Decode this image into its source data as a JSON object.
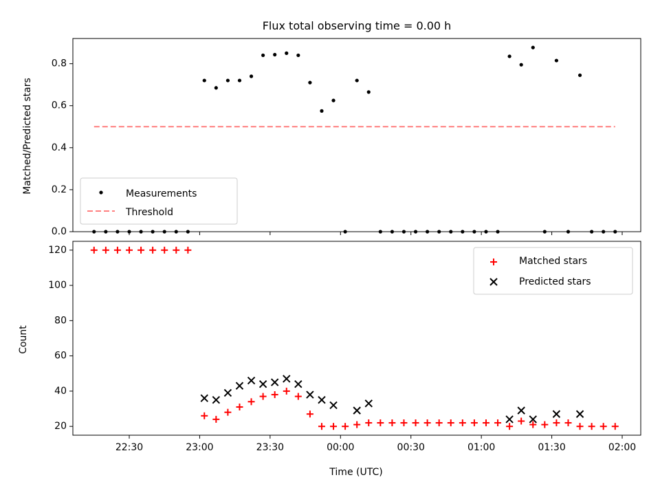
{
  "chart_data": [
    {
      "type": "scatter",
      "title": "Flux total observing time = 0.00 h",
      "xlabel": "",
      "ylabel": "Matched/Predicted stars",
      "ylim": [
        0,
        0.92
      ],
      "yticks": [
        "0.0",
        "0.2",
        "0.4",
        "0.6",
        "0.8"
      ],
      "legend": {
        "placement": "lower-left",
        "entries": [
          "Measurements",
          "Threshold"
        ]
      },
      "series": [
        {
          "name": "Measurements",
          "marker": "dot",
          "color": "#000000",
          "points": [
            [
              "22:15",
              0
            ],
            [
              "22:20",
              0
            ],
            [
              "22:25",
              0
            ],
            [
              "22:30",
              0
            ],
            [
              "22:35",
              0
            ],
            [
              "22:40",
              0
            ],
            [
              "22:45",
              0
            ],
            [
              "22:50",
              0
            ],
            [
              "22:55",
              0
            ],
            [
              "23:02",
              0.72
            ],
            [
              "23:07",
              0.685
            ],
            [
              "23:12",
              0.72
            ],
            [
              "23:17",
              0.72
            ],
            [
              "23:22",
              0.74
            ],
            [
              "23:27",
              0.84
            ],
            [
              "23:32",
              0.843
            ],
            [
              "23:37",
              0.85
            ],
            [
              "23:42",
              0.84
            ],
            [
              "23:47",
              0.71
            ],
            [
              "23:52",
              0.575
            ],
            [
              "23:57",
              0.625
            ],
            [
              "00:02",
              0
            ],
            [
              "00:07",
              0.72
            ],
            [
              "00:12",
              0.665
            ],
            [
              "00:17",
              0
            ],
            [
              "00:22",
              0
            ],
            [
              "00:27",
              0
            ],
            [
              "00:32",
              0
            ],
            [
              "00:37",
              0
            ],
            [
              "00:42",
              0
            ],
            [
              "00:47",
              0
            ],
            [
              "00:52",
              0
            ],
            [
              "00:57",
              0
            ],
            [
              "01:02",
              0
            ],
            [
              "01:07",
              0
            ],
            [
              "01:12",
              0.835
            ],
            [
              "01:17",
              0.795
            ],
            [
              "01:22",
              0.877
            ],
            [
              "01:27",
              0
            ],
            [
              "01:32",
              0.815
            ],
            [
              "01:37",
              0
            ],
            [
              "01:42",
              0.745
            ],
            [
              "01:47",
              0
            ],
            [
              "01:52",
              0
            ],
            [
              "01:57",
              0
            ]
          ]
        },
        {
          "name": "Threshold",
          "style": "dashed",
          "color": "#ff7f7f",
          "points": [
            [
              "22:15",
              0.5
            ],
            [
              "01:57",
              0.5
            ]
          ]
        }
      ]
    },
    {
      "type": "scatter",
      "title": "",
      "xlabel": "Time (UTC)",
      "ylabel": "Count",
      "ylim": [
        15,
        125
      ],
      "yticks": [
        "20",
        "40",
        "60",
        "80",
        "100",
        "120"
      ],
      "xticks": [
        "22:30",
        "23:00",
        "23:30",
        "00:00",
        "00:30",
        "01:00",
        "01:30",
        "02:00"
      ],
      "legend": {
        "placement": "top-right",
        "entries": [
          "Matched stars",
          "Predicted stars"
        ]
      },
      "series": [
        {
          "name": "Matched stars",
          "marker": "plus",
          "color": "#ff0000",
          "points": [
            [
              "22:15",
              120
            ],
            [
              "22:20",
              120
            ],
            [
              "22:25",
              120
            ],
            [
              "22:30",
              120
            ],
            [
              "22:35",
              120
            ],
            [
              "22:40",
              120
            ],
            [
              "22:45",
              120
            ],
            [
              "22:50",
              120
            ],
            [
              "22:55",
              120
            ],
            [
              "23:02",
              26
            ],
            [
              "23:07",
              24
            ],
            [
              "23:12",
              28
            ],
            [
              "23:17",
              31
            ],
            [
              "23:22",
              34
            ],
            [
              "23:27",
              37
            ],
            [
              "23:32",
              38
            ],
            [
              "23:37",
              40
            ],
            [
              "23:42",
              37
            ],
            [
              "23:47",
              27
            ],
            [
              "23:52",
              20
            ],
            [
              "23:57",
              20
            ],
            [
              "00:02",
              20
            ],
            [
              "00:07",
              21
            ],
            [
              "00:12",
              22
            ],
            [
              "00:17",
              22
            ],
            [
              "00:22",
              22
            ],
            [
              "00:27",
              22
            ],
            [
              "00:32",
              22
            ],
            [
              "00:37",
              22
            ],
            [
              "00:42",
              22
            ],
            [
              "00:47",
              22
            ],
            [
              "00:52",
              22
            ],
            [
              "00:57",
              22
            ],
            [
              "01:02",
              22
            ],
            [
              "01:07",
              22
            ],
            [
              "01:12",
              20
            ],
            [
              "01:17",
              23
            ],
            [
              "01:22",
              21
            ],
            [
              "01:27",
              21
            ],
            [
              "01:32",
              22
            ],
            [
              "01:37",
              22
            ],
            [
              "01:42",
              20
            ],
            [
              "01:47",
              20
            ],
            [
              "01:52",
              20
            ],
            [
              "01:57",
              20
            ]
          ]
        },
        {
          "name": "Predicted stars",
          "marker": "x",
          "color": "#000000",
          "points": [
            [
              "23:02",
              36
            ],
            [
              "23:07",
              35
            ],
            [
              "23:12",
              39
            ],
            [
              "23:17",
              43
            ],
            [
              "23:22",
              46
            ],
            [
              "23:27",
              44
            ],
            [
              "23:32",
              45
            ],
            [
              "23:37",
              47
            ],
            [
              "23:42",
              44
            ],
            [
              "23:47",
              38
            ],
            [
              "23:52",
              35
            ],
            [
              "23:57",
              32
            ],
            [
              "00:07",
              29
            ],
            [
              "00:12",
              33
            ],
            [
              "01:12",
              24
            ],
            [
              "01:17",
              29
            ],
            [
              "01:22",
              24
            ],
            [
              "01:32",
              27
            ],
            [
              "01:42",
              27
            ]
          ]
        }
      ]
    }
  ]
}
